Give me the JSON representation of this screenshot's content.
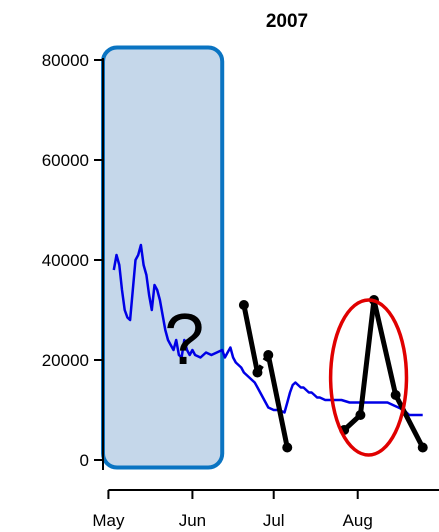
{
  "chart_data": {
    "type": "line",
    "title": "2007",
    "xlabel": "",
    "ylabel": "",
    "x_axis": {
      "type": "date",
      "range": [
        "2007-04-29",
        "2007-08-31"
      ],
      "ticks": [
        {
          "date": "2007-05-01",
          "label": "May"
        },
        {
          "date": "2007-06-01",
          "label": "Jun"
        },
        {
          "date": "2007-07-01",
          "label": "Jul"
        },
        {
          "date": "2007-08-01",
          "label": "Aug"
        }
      ]
    },
    "y_axis": {
      "range": [
        -2000,
        82000
      ],
      "ticks": [
        0,
        20000,
        40000,
        60000,
        80000
      ],
      "tick_labels": [
        "0",
        "20000",
        "40000",
        "60000",
        "80000"
      ]
    },
    "grid": false,
    "series": [
      {
        "style": "line",
        "color": "#0000e6",
        "points": [
          [
            "2007-05-03",
            38000
          ],
          [
            "2007-05-04",
            41000
          ],
          [
            "2007-05-05",
            39000
          ],
          [
            "2007-05-06",
            34000
          ],
          [
            "2007-05-07",
            30000
          ],
          [
            "2007-05-08",
            28500
          ],
          [
            "2007-05-09",
            28000
          ],
          [
            "2007-05-10",
            34000
          ],
          [
            "2007-05-11",
            40000
          ],
          [
            "2007-05-12",
            41000
          ],
          [
            "2007-05-13",
            43000
          ],
          [
            "2007-05-14",
            39000
          ],
          [
            "2007-05-15",
            37000
          ],
          [
            "2007-05-16",
            33000
          ],
          [
            "2007-05-17",
            30000
          ],
          [
            "2007-05-18",
            35000
          ],
          [
            "2007-05-19",
            34000
          ],
          [
            "2007-05-20",
            32000
          ],
          [
            "2007-05-21",
            29000
          ],
          [
            "2007-05-22",
            26000
          ],
          [
            "2007-05-23",
            24000
          ],
          [
            "2007-05-24",
            23000
          ],
          [
            "2007-05-25",
            22000
          ],
          [
            "2007-05-26",
            24000
          ],
          [
            "2007-05-27",
            21000
          ],
          [
            "2007-05-28",
            20500
          ],
          [
            "2007-05-29",
            24000
          ],
          [
            "2007-05-30",
            22000
          ],
          [
            "2007-05-31",
            21000
          ],
          [
            "2007-06-01",
            22000
          ],
          [
            "2007-06-02",
            21000
          ],
          [
            "2007-06-04",
            20500
          ],
          [
            "2007-06-06",
            21500
          ],
          [
            "2007-06-08",
            21000
          ],
          [
            "2007-06-10",
            21500
          ],
          [
            "2007-06-12",
            22000
          ],
          [
            "2007-06-13",
            20500
          ],
          [
            "2007-06-14",
            21500
          ],
          [
            "2007-06-15",
            22500
          ],
          [
            "2007-06-16",
            20500
          ],
          [
            "2007-06-17",
            19500
          ],
          [
            "2007-06-18",
            19000
          ],
          [
            "2007-06-19",
            18500
          ],
          [
            "2007-06-20",
            17500
          ],
          [
            "2007-06-21",
            17000
          ],
          [
            "2007-06-22",
            16500
          ],
          [
            "2007-06-23",
            16000
          ],
          [
            "2007-06-24",
            15500
          ],
          [
            "2007-06-25",
            14500
          ],
          [
            "2007-06-26",
            13500
          ],
          [
            "2007-06-27",
            12500
          ],
          [
            "2007-06-28",
            11500
          ],
          [
            "2007-06-29",
            10500
          ],
          [
            "2007-07-01",
            10000
          ],
          [
            "2007-07-03",
            10000
          ],
          [
            "2007-07-05",
            9500
          ],
          [
            "2007-07-06",
            11500
          ],
          [
            "2007-07-07",
            13500
          ],
          [
            "2007-07-08",
            15000
          ],
          [
            "2007-07-09",
            15500
          ],
          [
            "2007-07-10",
            15000
          ],
          [
            "2007-07-11",
            14500
          ],
          [
            "2007-07-12",
            14500
          ],
          [
            "2007-07-13",
            14000
          ],
          [
            "2007-07-14",
            13500
          ],
          [
            "2007-07-15",
            13500
          ],
          [
            "2007-07-16",
            13000
          ],
          [
            "2007-07-17",
            12500
          ],
          [
            "2007-07-18",
            12500
          ],
          [
            "2007-07-20",
            12000
          ],
          [
            "2007-07-23",
            12000
          ],
          [
            "2007-07-26",
            12000
          ],
          [
            "2007-07-29",
            11500
          ],
          [
            "2007-08-01",
            11500
          ],
          [
            "2007-08-05",
            11500
          ],
          [
            "2007-08-09",
            11500
          ],
          [
            "2007-08-12",
            11500
          ],
          [
            "2007-08-14",
            11000
          ],
          [
            "2007-08-16",
            10500
          ],
          [
            "2007-08-18",
            10000
          ],
          [
            "2007-08-20",
            9000
          ],
          [
            "2007-08-23",
            9000
          ],
          [
            "2007-08-25",
            9000
          ]
        ]
      },
      {
        "style": "dots-with-segments",
        "color": "#000000",
        "points": [
          [
            "2007-06-20",
            31000
          ],
          [
            "2007-06-25",
            17500
          ],
          [
            "2007-06-29",
            21000
          ],
          [
            "2007-07-06",
            2500
          ],
          [
            "2007-07-27",
            6000
          ],
          [
            "2007-08-02",
            9000
          ],
          [
            "2007-08-07",
            32000
          ],
          [
            "2007-08-15",
            13000
          ],
          [
            "2007-08-25",
            2500
          ]
        ],
        "segments": [
          [
            0,
            1
          ],
          [
            2,
            3
          ],
          [
            4,
            5
          ],
          [
            5,
            6
          ],
          [
            6,
            7
          ],
          [
            7,
            8
          ]
        ],
        "dashed_segments": [
          [
            1,
            2
          ]
        ]
      }
    ],
    "annotations": [
      {
        "shape": "rounded-rect",
        "fill": "#c5d7ea",
        "stroke": "#0a74c2",
        "x_range": [
          "2007-04-29",
          "2007-06-12"
        ],
        "y_range": [
          -1500,
          82500
        ]
      },
      {
        "shape": "text",
        "text": "?",
        "at": [
          "2007-05-29",
          20000
        ]
      },
      {
        "shape": "ellipse",
        "stroke": "#e00000",
        "center": [
          "2007-08-05",
          16500
        ],
        "x_radius_days": 14,
        "y_radius": 15500
      }
    ]
  }
}
